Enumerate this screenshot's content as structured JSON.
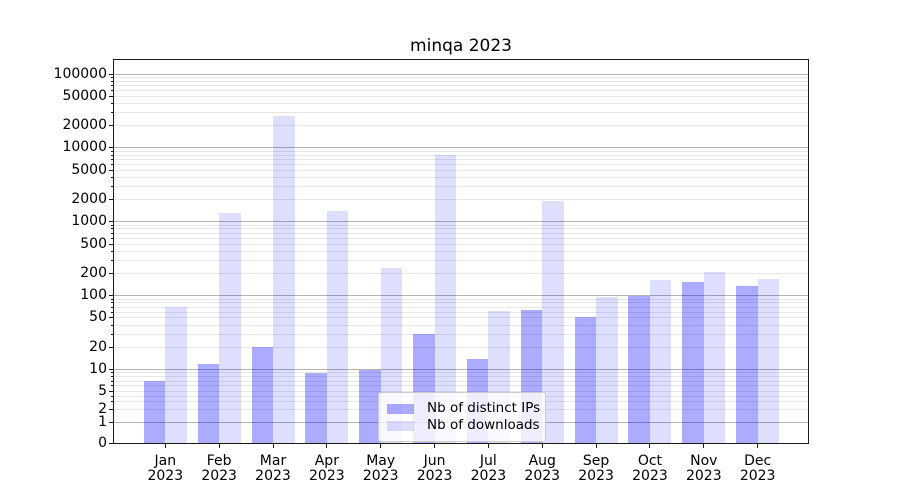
{
  "title": "minqa 2023",
  "legend": {
    "items": [
      {
        "label": "Nb of distinct IPs",
        "color": "rgba(0,0,255,0.33)"
      },
      {
        "label": "Nb of downloads",
        "color": "rgba(0,0,255,0.13)"
      }
    ]
  },
  "chart_data": {
    "type": "bar",
    "title": "minqa 2023",
    "categories": [
      "Jan 2023",
      "Feb 2023",
      "Mar 2023",
      "Apr 2023",
      "May 2023",
      "Jun 2023",
      "Jul 2023",
      "Aug 2023",
      "Sep 2023",
      "Oct 2023",
      "Nov 2023",
      "Dec 2023"
    ],
    "series": [
      {
        "name": "Nb of distinct IPs",
        "color": "rgba(0,0,255,0.33)",
        "values": [
          7,
          12,
          20,
          9,
          10,
          30,
          14,
          65,
          52,
          98,
          155,
          135
        ]
      },
      {
        "name": "Nb of downloads",
        "color": "rgba(0,0,255,0.13)",
        "values": [
          70,
          1300,
          27000,
          1400,
          240,
          8000,
          62,
          1900,
          97,
          165,
          210,
          170
        ]
      }
    ],
    "xlabel": "",
    "ylabel": "",
    "yscale": "log (compressed linear segment below 5, baseline 0)",
    "ylim": [
      0,
      165000
    ],
    "ytick_labels": [
      "100000",
      "50000",
      "20000",
      "10000",
      "5000",
      "2000",
      "1000",
      "500",
      "200",
      "100",
      "50",
      "20",
      "10",
      "5",
      "2",
      "1",
      "0"
    ],
    "ytick_values": [
      100000,
      50000,
      20000,
      10000,
      5000,
      2000,
      1000,
      500,
      200,
      100,
      50,
      20,
      10,
      5,
      2,
      1,
      0
    ],
    "grid": "horizontal gridlines: major at powers of 10, faint minors at 2-9 per decade",
    "grid_colors": {
      "major": "#b3b3b3",
      "minor": "#e7e7e7"
    },
    "legend_position": "inside plot, lower center"
  }
}
